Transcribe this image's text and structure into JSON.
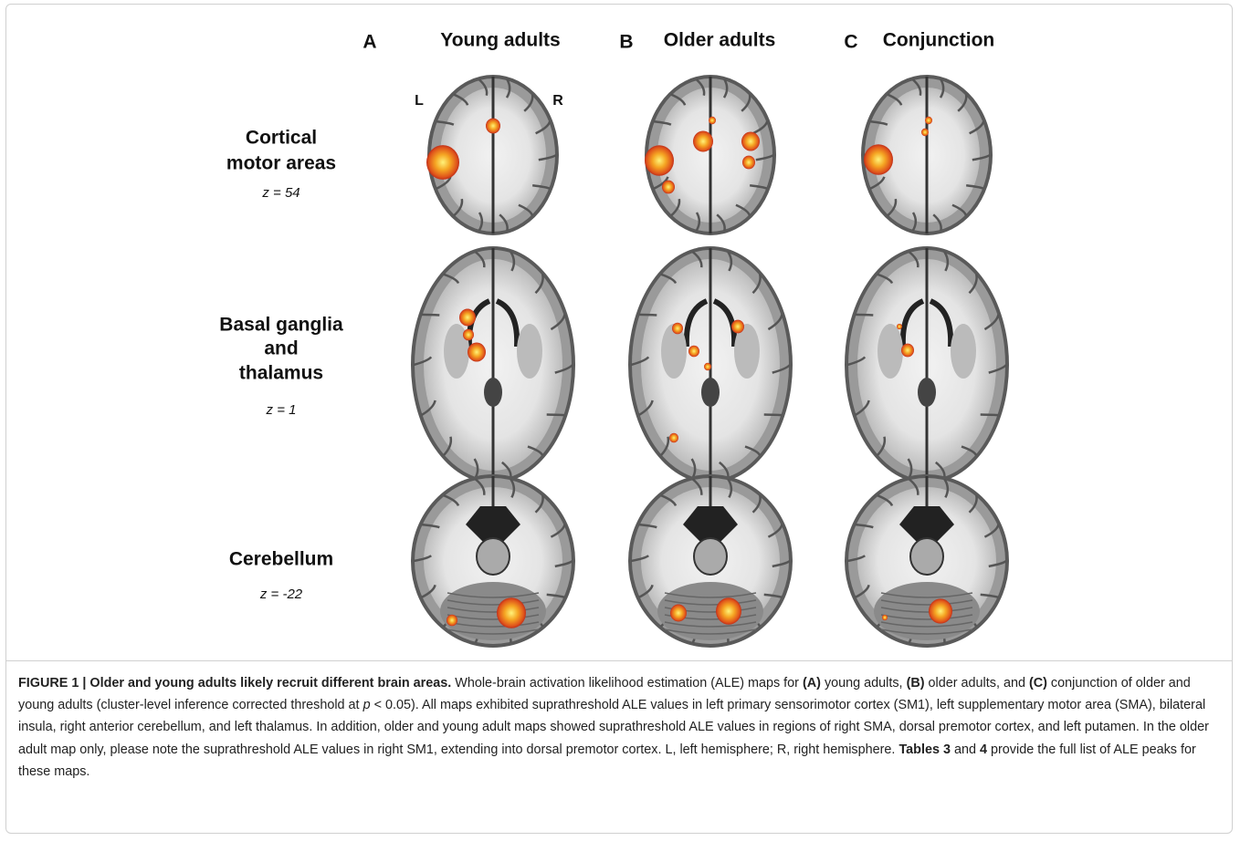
{
  "figure": {
    "columns": [
      {
        "letter": "A",
        "title": "Young adults"
      },
      {
        "letter": "B",
        "title": "Older adults"
      },
      {
        "letter": "C",
        "title": "Conjunction"
      }
    ],
    "hemispheres": {
      "left": "L",
      "right": "R"
    },
    "rows": [
      {
        "label_lines": [
          "Cortical",
          "motor areas"
        ],
        "z": "z = 54"
      },
      {
        "label_lines": [
          "Basal ganglia",
          "and",
          "thalamus"
        ],
        "z": "z = 1"
      },
      {
        "label_lines": [
          "Cerebellum"
        ],
        "z": "z = -22"
      }
    ]
  },
  "caption": {
    "segments": [
      {
        "text": "FIGURE 1 | Older and young adults likely recruit different brain areas.",
        "style": "bold"
      },
      {
        "text": " Whole-brain activation likelihood estimation (ALE) maps for ",
        "style": "normal"
      },
      {
        "text": "(A)",
        "style": "bold"
      },
      {
        "text": " young adults, ",
        "style": "normal"
      },
      {
        "text": "(B)",
        "style": "bold"
      },
      {
        "text": " older adults, and ",
        "style": "normal"
      },
      {
        "text": "(C)",
        "style": "bold"
      },
      {
        "text": " conjunction of older and young adults (cluster-level inference corrected threshold at ",
        "style": "normal"
      },
      {
        "text": "p",
        "style": "italic"
      },
      {
        "text": " < 0.05). All maps exhibited suprathreshold ALE values in left primary sensorimotor cortex (SM1), left supplementary motor area (SMA), bilateral insula, right anterior cerebellum, and left thalamus. In addition, older and young adult maps showed suprathreshold ALE values in regions of right SMA, dorsal premotor cortex, and left putamen. In the older adult map only, please note the suprathreshold ALE values in right SM1, extending into dorsal premotor cortex. L, left hemisphere; R, right hemisphere. ",
        "style": "normal"
      },
      {
        "text": "Tables 3",
        "style": "bold"
      },
      {
        "text": " and ",
        "style": "normal"
      },
      {
        "text": "4",
        "style": "bold"
      },
      {
        "text": " provide the full list of ALE peaks for these maps.",
        "style": "normal"
      }
    ]
  }
}
